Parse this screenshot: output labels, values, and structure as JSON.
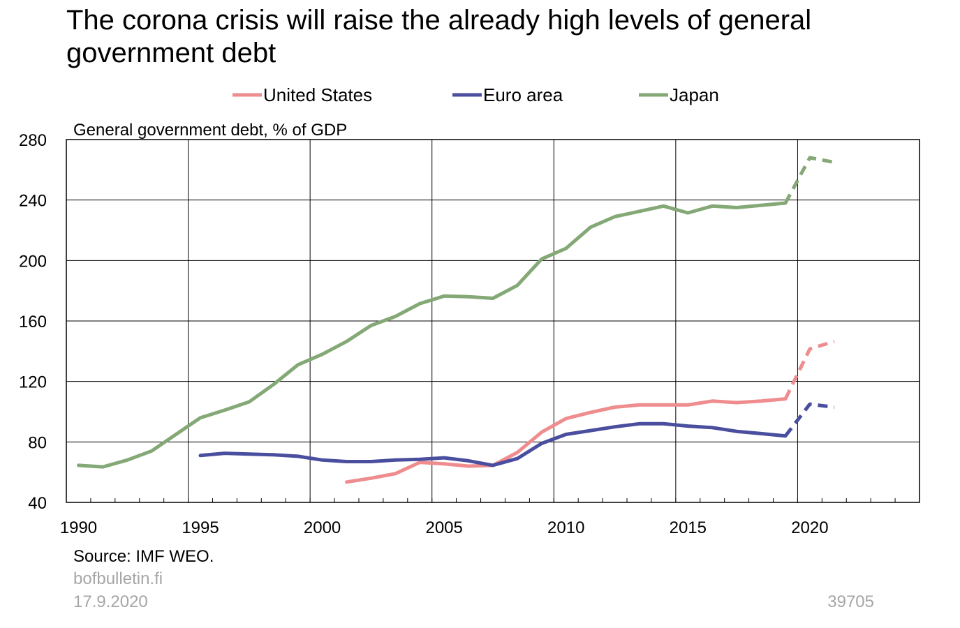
{
  "chart_data": {
    "type": "line",
    "title": "The corona crisis will raise the already high levels of general government debt",
    "ylabel": "General government debt, % of GDP",
    "xlim": [
      1989.5,
      2024.5
    ],
    "ylim": [
      40,
      280
    ],
    "y_ticks": [
      40,
      80,
      120,
      160,
      200,
      240,
      280
    ],
    "x_tick_labels": [
      "1990",
      "1995",
      "2000",
      "2005",
      "2010",
      "2015",
      "2020"
    ],
    "x_tick_values": [
      1990,
      1995,
      2000,
      2005,
      2010,
      2015,
      2020
    ],
    "grid": true,
    "legend_position": "top",
    "forecast_note": "values from 2019 onwards drawn dashed",
    "series": [
      {
        "name": "United States",
        "color": "#ee8c8e",
        "x": [
          2001,
          2002,
          2003,
          2004,
          2005,
          2006,
          2007,
          2008,
          2009,
          2010,
          2011,
          2012,
          2013,
          2014,
          2015,
          2016,
          2017,
          2018,
          2019,
          2020,
          2021
        ],
        "values": [
          53.5,
          56,
          59,
          66.5,
          65.5,
          64,
          64.5,
          73,
          86.5,
          95.5,
          99.5,
          103,
          104.5,
          104.5,
          104.5,
          107,
          106,
          107,
          108.5,
          141.5,
          146.5
        ]
      },
      {
        "name": "Euro area",
        "color": "#4a4e9f",
        "x": [
          1995,
          1996,
          1997,
          1998,
          1999,
          2000,
          2001,
          2002,
          2003,
          2004,
          2005,
          2006,
          2007,
          2008,
          2009,
          2010,
          2011,
          2012,
          2013,
          2014,
          2015,
          2016,
          2017,
          2018,
          2019,
          2020,
          2021
        ],
        "values": [
          71,
          72.5,
          72,
          71.5,
          70.5,
          68,
          67,
          67,
          68,
          68.5,
          69.5,
          67.5,
          64.5,
          69,
          79,
          85,
          87.5,
          90,
          92,
          92,
          90.5,
          89.5,
          87,
          85.5,
          84,
          105,
          103
        ]
      },
      {
        "name": "Japan",
        "color": "#84a876",
        "x": [
          1990,
          1991,
          1992,
          1993,
          1994,
          1995,
          1996,
          1997,
          1998,
          1999,
          2000,
          2001,
          2002,
          2003,
          2004,
          2005,
          2006,
          2007,
          2008,
          2009,
          2010,
          2011,
          2012,
          2013,
          2014,
          2015,
          2016,
          2017,
          2018,
          2019,
          2020,
          2021
        ],
        "values": [
          64.5,
          63.5,
          68,
          74,
          85,
          96,
          101,
          106.5,
          118,
          131,
          138,
          146.5,
          157,
          163,
          171.5,
          176.5,
          176,
          175,
          183.5,
          201,
          208,
          222,
          229,
          232.5,
          236,
          231.5,
          236,
          235,
          236.5,
          238,
          268,
          265
        ]
      }
    ],
    "forecast_from_x": 2019
  },
  "footer": {
    "source": "Source: IMF WEO.",
    "site": "bofbulletin.fi",
    "date": "17.9.2020",
    "code": "39705"
  }
}
